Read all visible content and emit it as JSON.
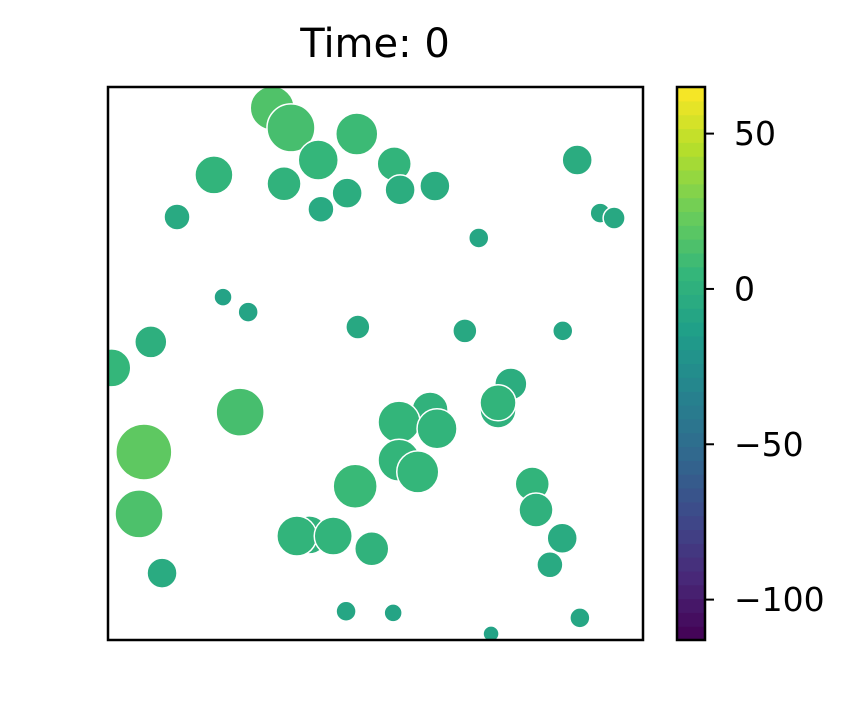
{
  "chart_data": {
    "type": "scatter",
    "title": "Time: 0",
    "x": [
      30.7,
      34.2,
      46.5,
      39.3,
      53.5,
      19.8,
      32.9,
      44.7,
      54.6,
      61.1,
      87.7,
      39.8,
      12.9,
      92.0,
      94.6,
      69.3,
      21.5,
      26.2,
      46.7,
      66.7,
      85.0,
      8.0,
      0.7,
      75.3,
      24.7,
      60.2,
      72.9,
      72.9,
      54.4,
      61.5,
      6.7,
      54.4,
      57.9,
      46.2,
      79.3,
      80.0,
      5.8,
      84.9,
      37.6,
      35.3,
      42.1,
      49.3,
      10.1,
      82.6,
      44.5,
      53.3,
      88.2,
      71.6
    ],
    "y": [
      96.2,
      92.6,
      91.5,
      86.8,
      86.1,
      84.1,
      82.5,
      80.8,
      81.4,
      82.1,
      86.8,
      77.9,
      76.5,
      77.2,
      76.3,
      72.7,
      62.0,
      59.3,
      56.6,
      55.9,
      55.9,
      53.9,
      49.2,
      46.3,
      41.2,
      41.6,
      41.6,
      42.9,
      39.4,
      38.2,
      34.0,
      32.5,
      30.4,
      27.8,
      28.2,
      23.5,
      22.8,
      18.4,
      19.0,
      18.8,
      18.8,
      16.5,
      12.1,
      13.6,
      5.2,
      4.9,
      4.0,
      1.1
    ],
    "sizes": [
      22,
      24,
      21,
      20,
      17,
      19,
      17,
      15,
      15,
      15,
      15,
      13,
      13,
      10,
      11,
      10,
      9,
      10,
      12,
      12,
      10,
      16,
      19,
      16,
      24,
      18,
      18,
      18,
      21,
      20,
      28,
      21,
      21,
      22,
      17,
      17,
      24,
      15,
      19,
      20,
      19,
      17,
      15,
      13,
      10,
      9,
      10,
      8
    ],
    "colors": [
      15,
      12,
      8,
      5,
      3,
      3,
      2,
      -2,
      -2,
      -3,
      -3,
      -5,
      -5,
      -6,
      -6,
      -8,
      -10,
      -9,
      -6,
      -6,
      -8,
      -1,
      5,
      -2,
      12,
      2,
      1,
      3,
      4,
      3,
      20,
      4,
      5,
      7,
      3,
      1,
      14,
      -4,
      2,
      3,
      3,
      2,
      -4,
      -5,
      -8,
      -9,
      -8,
      -10
    ],
    "colormap": "viridis",
    "xlim": [
      0,
      100
    ],
    "ylim": [
      0,
      100
    ],
    "clim": [
      -113,
      65
    ],
    "cticks": [
      {
        "value": 50,
        "label": "50"
      },
      {
        "value": 0,
        "label": "0"
      },
      {
        "value": -50,
        "label": "−50"
      },
      {
        "value": -100,
        "label": "−100"
      }
    ]
  }
}
